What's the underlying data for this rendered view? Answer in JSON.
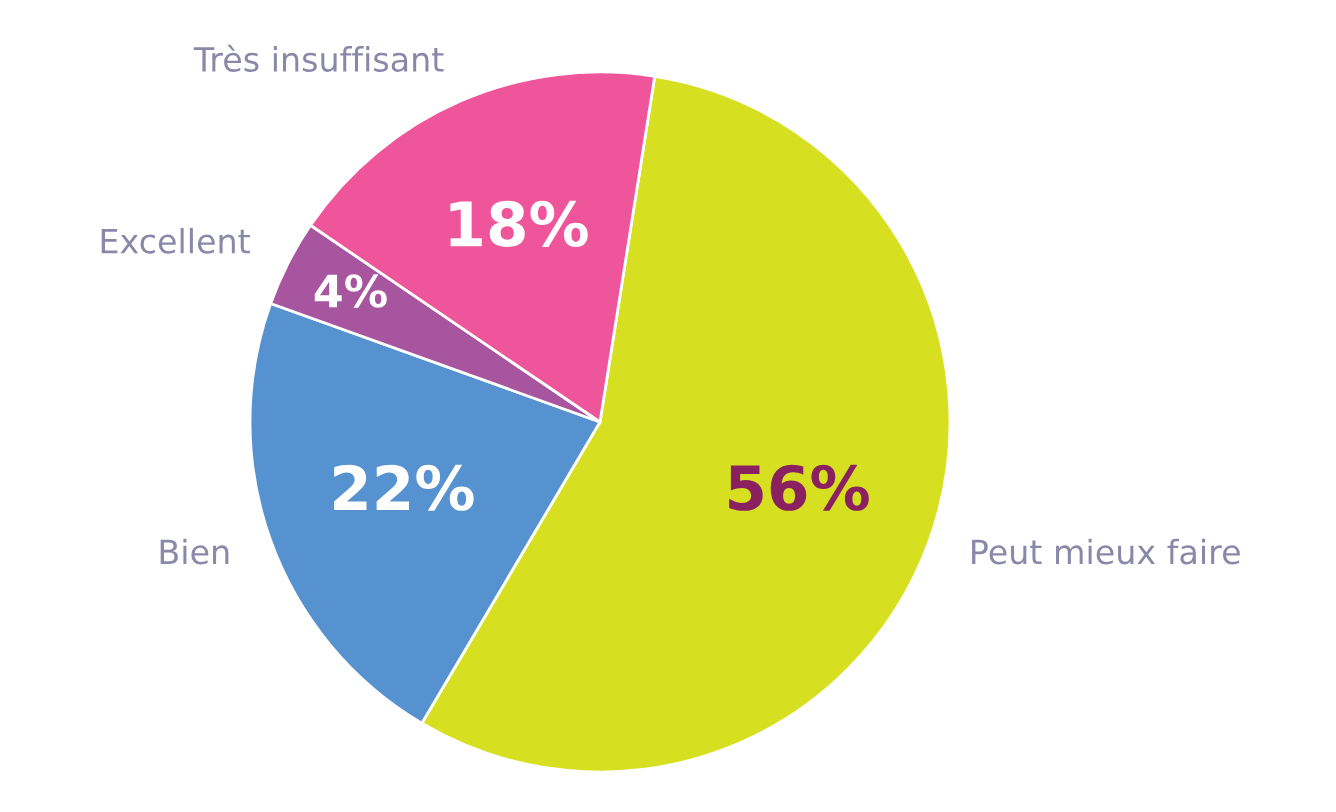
{
  "chart_data": {
    "type": "pie",
    "categories": [
      "Peut mieux faire",
      "Bien",
      "Excellent",
      "Très insuffisant"
    ],
    "values": [
      56,
      22,
      4,
      18
    ],
    "value_labels": [
      "56%",
      "22%",
      "4%",
      "18%"
    ],
    "colors": [
      "#d6e021",
      "#5592cf",
      "#a855a0",
      "#ee559a"
    ],
    "legend": false
  }
}
